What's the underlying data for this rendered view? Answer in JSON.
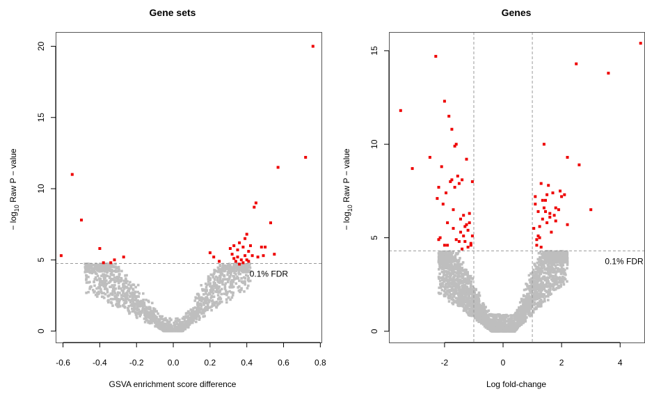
{
  "colors": {
    "background": "#ffffff",
    "significant": "#ee0000",
    "nonsignificant": "#bebebe",
    "frame": "#555555",
    "reference_line": "#999999"
  },
  "chart_data": [
    {
      "type": "scatter",
      "title": "Gene sets",
      "xlabel": "GSVA enrichment score difference",
      "ylabel": "− log10  Raw P − value",
      "ylabel_parts": [
        "− log",
        "10",
        "  Raw P − value"
      ],
      "xlim": [
        -0.64,
        0.81
      ],
      "ylim": [
        -0.8,
        21
      ],
      "xticks": [
        -0.6,
        -0.4,
        -0.2,
        0.0,
        0.2,
        0.4,
        0.6,
        0.8
      ],
      "xtick_labels": [
        "-0.6",
        "-0.4",
        "-0.2",
        "0.0",
        "0.2",
        "0.4",
        "0.6",
        "0.8"
      ],
      "yticks": [
        0,
        5,
        10,
        15,
        20
      ],
      "ytick_labels": [
        "0",
        "5",
        "10",
        "15",
        "20"
      ],
      "hlines": [
        4.75
      ],
      "vlines": [],
      "annotations": [
        {
          "text": "0.1% FDR",
          "x": 0.52,
          "y": 4.75
        }
      ],
      "cloud": {
        "xmin": -0.48,
        "xmax": 0.42,
        "halfwidth": 0.05,
        "threshold": 4.75,
        "n": 1500,
        "curve_coef": 20.5,
        "scatter": 0.65
      },
      "series": [
        {
          "role": "significant",
          "x": [
            -0.61,
            -0.55,
            -0.5,
            -0.4,
            -0.38,
            -0.34,
            -0.32,
            -0.27,
            0.2,
            0.22,
            0.25,
            0.31,
            0.32,
            0.33,
            0.33,
            0.34,
            0.35,
            0.35,
            0.36,
            0.36,
            0.37,
            0.38,
            0.38,
            0.39,
            0.39,
            0.4,
            0.4,
            0.41,
            0.41,
            0.42,
            0.43,
            0.44,
            0.45,
            0.46,
            0.48,
            0.49,
            0.5,
            0.53,
            0.55,
            0.57,
            0.72,
            0.76
          ],
          "y": [
            5.3,
            11.0,
            7.8,
            5.8,
            4.8,
            4.8,
            5.0,
            5.2,
            5.5,
            5.2,
            4.9,
            5.8,
            5.4,
            6.0,
            5.1,
            4.9,
            5.7,
            5.2,
            6.2,
            4.7,
            5.0,
            5.9,
            4.8,
            6.5,
            5.3,
            6.8,
            5.0,
            5.6,
            4.9,
            6.0,
            5.3,
            8.7,
            9.0,
            5.2,
            5.9,
            5.3,
            5.9,
            7.6,
            5.4,
            11.5,
            12.2,
            20.0
          ]
        }
      ]
    },
    {
      "type": "scatter",
      "title": "Genes",
      "xlabel": "Log fold-change",
      "ylabel": "− log10  Raw P − value",
      "ylabel_parts": [
        "− log",
        "10",
        "  Raw P − value"
      ],
      "xlim": [
        -3.9,
        4.85
      ],
      "ylim": [
        -0.6,
        16.0
      ],
      "xticks": [
        -2,
        0,
        2,
        4
      ],
      "xtick_labels": [
        "-2",
        "0",
        "2",
        "4"
      ],
      "yticks": [
        0,
        5,
        10,
        15
      ],
      "ytick_labels": [
        "0",
        "5",
        "10",
        "15"
      ],
      "hlines": [
        4.3
      ],
      "vlines": [
        -1,
        1
      ],
      "annotations": [
        {
          "text": "0.1% FDR",
          "x": 4.5,
          "y": 4.3
        }
      ],
      "cloud": {
        "xmin": -2.2,
        "xmax": 2.2,
        "halfwidth": 0.4,
        "threshold": 4.3,
        "n": 3000,
        "curve_coef": 3.6,
        "scatter": 0.7
      },
      "series": [
        {
          "role": "significant",
          "x": [
            -3.5,
            -3.1,
            -2.5,
            -2.3,
            -2.2,
            -2.15,
            -2.1,
            -2.0,
            -1.9,
            -1.85,
            -1.8,
            -1.75,
            -1.7,
            -1.65,
            -1.6,
            -1.55,
            -1.5,
            -1.45,
            -1.4,
            -1.35,
            -1.3,
            -1.25,
            -1.2,
            -1.15,
            -1.1,
            -1.05,
            -2.25,
            -2.05,
            -1.95,
            -1.75,
            -1.65,
            -1.45,
            -1.35,
            -1.25,
            -1.15,
            -1.1,
            -2.2,
            -1.9,
            -1.7,
            -1.5,
            -1.3,
            -1.2,
            -1.05,
            -2.0,
            -1.6,
            -1.4,
            1.05,
            1.1,
            1.15,
            1.2,
            1.25,
            1.3,
            1.35,
            1.4,
            1.45,
            1.5,
            1.55,
            1.6,
            1.7,
            1.8,
            1.9,
            2.0,
            2.1,
            2.2,
            1.1,
            1.2,
            1.3,
            1.5,
            1.6,
            1.8,
            1.95,
            1.15,
            1.25,
            1.35,
            1.45,
            1.65,
            1.75,
            1.4,
            2.2,
            2.5,
            2.6,
            3.0,
            3.6,
            4.7
          ],
          "y": [
            11.8,
            8.7,
            9.3,
            14.7,
            7.7,
            5.0,
            8.8,
            4.6,
            4.6,
            11.5,
            8.0,
            10.8,
            5.5,
            7.7,
            4.9,
            8.3,
            7.9,
            5.3,
            8.1,
            6.2,
            4.8,
            9.2,
            5.4,
            5.8,
            4.7,
            5.1,
            7.1,
            6.8,
            7.4,
            8.1,
            9.9,
            6.0,
            5.1,
            5.7,
            6.3,
            4.6,
            4.9,
            5.8,
            6.5,
            4.8,
            5.6,
            4.5,
            8.0,
            12.3,
            10.0,
            4.4,
            5.5,
            7.2,
            4.6,
            6.4,
            5.0,
            7.9,
            6.0,
            6.6,
            7.0,
            5.8,
            7.8,
            6.3,
            7.4,
            5.9,
            6.5,
            7.2,
            7.3,
            5.7,
            6.8,
            5.1,
            4.5,
            7.3,
            6.1,
            6.6,
            7.5,
            4.9,
            5.6,
            7.0,
            6.4,
            5.3,
            6.2,
            10.0,
            9.3,
            14.3,
            8.9,
            6.5,
            13.8,
            15.4
          ]
        }
      ]
    }
  ]
}
